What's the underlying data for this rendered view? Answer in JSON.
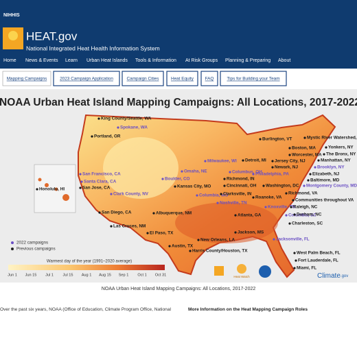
{
  "header": {
    "logo": "NIHHIS",
    "site": "HEAT.gov",
    "tagline": "National Integrated Heat Health Information System"
  },
  "nav": [
    "Home",
    "News & Events",
    "Learn",
    "Urban Heat Islands",
    "Tools & Information",
    "At Risk Groups",
    "Planning & Preparing",
    "About"
  ],
  "tabs": [
    "Mapping Campaigns",
    "2023 Campaign Application",
    "Campaign Cities",
    "Heat Equity",
    "FAQ",
    "Tips for Building your Team"
  ],
  "map": {
    "title": "NOAA Urban Heat Island Mapping Campaigns: All Locations, 2017-2022",
    "cities_2022": [
      "Spokane, WA",
      "San Francisco, CA",
      "Santa Clara, CA",
      "Clark County, NV",
      "Boulder, CO",
      "Omaha, NE",
      "Milwaukee, WI",
      "Columbus, OH",
      "Philadelphia, PA",
      "Brooklyn, NY",
      "Montgomery County, MD",
      "Columbia, MO",
      "Nashville, TN",
      "Knoxville, TN",
      "Columbia, SC",
      "Jacksonville, FL"
    ],
    "cities_previous": [
      "King County/Seattle, WA",
      "Portland, OR",
      "Burlington, VT",
      "Mystic River Watershed, MA",
      "Boston, MA",
      "Yonkers, NY",
      "Worcester, MA",
      "The Bronx, NY",
      "Manhattan, NY",
      "Jersey City, NJ",
      "Newark, NJ",
      "Elizabeth, NJ",
      "Detroit, MI",
      "Richmond, IN",
      "Baltimore, MD",
      "Washington, DC",
      "Kansas City, MO",
      "Cincinnati, OH",
      "Clarksville, IN",
      "Roanoke, VA",
      "Richmond, VA",
      "Communities throughout VA",
      "San Jose, CA",
      "Raleigh, NC",
      "Durham, NC",
      "Charleston, SC",
      "Atlanta, GA",
      "San Diego, CA",
      "Albuquerque, NM",
      "Las Cruces, NM",
      "El Paso, TX",
      "Jackson, MS",
      "New Orleans, LA",
      "Austin, TX",
      "Harris County/Houston, TX",
      "West Palm Beach, FL",
      "Fort Lauderdale, FL",
      "Miami, FL",
      "Honolulu, HI"
    ],
    "legend": {
      "new": "2022 campaigns",
      "previous": "Previous campaigns",
      "scale_title": "Warmest day of the year (1991–2020 average)",
      "scale_ticks": [
        "Jun 1",
        "Jun 15",
        "Jul 1",
        "Jul 15",
        "Aug 1",
        "Aug 15",
        "Sep 1",
        "Oct 1",
        "Oct 31"
      ]
    },
    "credits": {
      "heatwatch": "Heat Watch",
      "climate": "Climate",
      "climate_suffix": ".gov"
    }
  },
  "caption": "NOAA Urban Heat Island Mapping Campaigns: All Locations, 2017-2022",
  "body": {
    "intro": "Over the past six years, NOAA (Office of Education, Climate Program Office, National",
    "link": "More Information on the Heat Mapping Campaign Roles"
  }
}
